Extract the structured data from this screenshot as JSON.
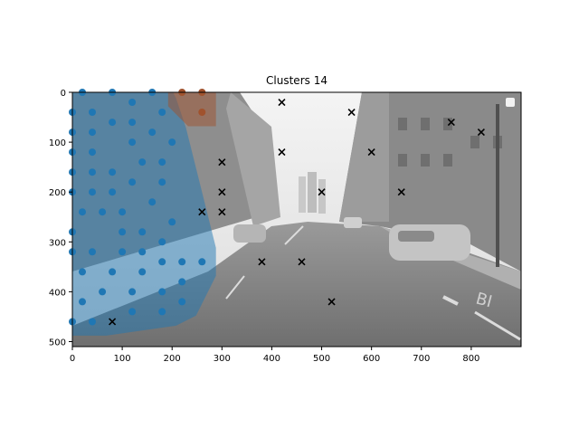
{
  "chart_data": {
    "type": "scatter",
    "title": "Clusters 14",
    "xlabel": "",
    "ylabel": "",
    "xlim": [
      0,
      900
    ],
    "ylim": [
      510,
      0
    ],
    "y_inverted": true,
    "grid": false,
    "legend": "none",
    "background": "grayscale street-scene photograph",
    "x_ticks": [
      0,
      100,
      200,
      300,
      400,
      500,
      600,
      700,
      800
    ],
    "y_ticks": [
      0,
      100,
      200,
      300,
      400,
      500
    ],
    "clusters": [
      {
        "color": "#1f77b4",
        "marker": "circle",
        "hull_color": "#1f77b4",
        "points": [
          [
            20,
            0
          ],
          [
            80,
            0
          ],
          [
            160,
            0
          ],
          [
            0,
            40
          ],
          [
            40,
            40
          ],
          [
            120,
            20
          ],
          [
            180,
            40
          ],
          [
            0,
            80
          ],
          [
            40,
            80
          ],
          [
            80,
            60
          ],
          [
            120,
            60
          ],
          [
            160,
            80
          ],
          [
            0,
            120
          ],
          [
            40,
            120
          ],
          [
            120,
            100
          ],
          [
            200,
            100
          ],
          [
            0,
            160
          ],
          [
            40,
            160
          ],
          [
            80,
            160
          ],
          [
            140,
            140
          ],
          [
            180,
            140
          ],
          [
            0,
            200
          ],
          [
            40,
            200
          ],
          [
            80,
            200
          ],
          [
            120,
            180
          ],
          [
            160,
            220
          ],
          [
            180,
            180
          ],
          [
            20,
            240
          ],
          [
            60,
            240
          ],
          [
            100,
            240
          ],
          [
            0,
            280
          ],
          [
            100,
            280
          ],
          [
            140,
            280
          ],
          [
            200,
            260
          ],
          [
            0,
            320
          ],
          [
            40,
            320
          ],
          [
            100,
            320
          ],
          [
            140,
            320
          ],
          [
            180,
            300
          ],
          [
            20,
            360
          ],
          [
            80,
            360
          ],
          [
            140,
            360
          ],
          [
            180,
            340
          ],
          [
            220,
            340
          ],
          [
            260,
            340
          ],
          [
            60,
            400
          ],
          [
            120,
            400
          ],
          [
            180,
            400
          ],
          [
            220,
            380
          ],
          [
            20,
            420
          ],
          [
            120,
            440
          ],
          [
            180,
            440
          ],
          [
            220,
            420
          ],
          [
            0,
            460
          ],
          [
            40,
            460
          ]
        ]
      },
      {
        "color": "#a0522d",
        "marker": "circle",
        "hull_color": "#a0522d",
        "points": [
          [
            220,
            0
          ],
          [
            260,
            0
          ],
          [
            260,
            40
          ]
        ]
      }
    ],
    "unclustered": {
      "color": "#000000",
      "marker": "x",
      "points": [
        [
          420,
          20
        ],
        [
          560,
          40
        ],
        [
          760,
          60
        ],
        [
          820,
          80
        ],
        [
          420,
          120
        ],
        [
          600,
          120
        ],
        [
          300,
          140
        ],
        [
          300,
          200
        ],
        [
          500,
          200
        ],
        [
          660,
          200
        ],
        [
          260,
          240
        ],
        [
          300,
          240
        ],
        [
          380,
          340
        ],
        [
          460,
          340
        ],
        [
          520,
          420
        ],
        [
          80,
          460
        ]
      ]
    }
  }
}
